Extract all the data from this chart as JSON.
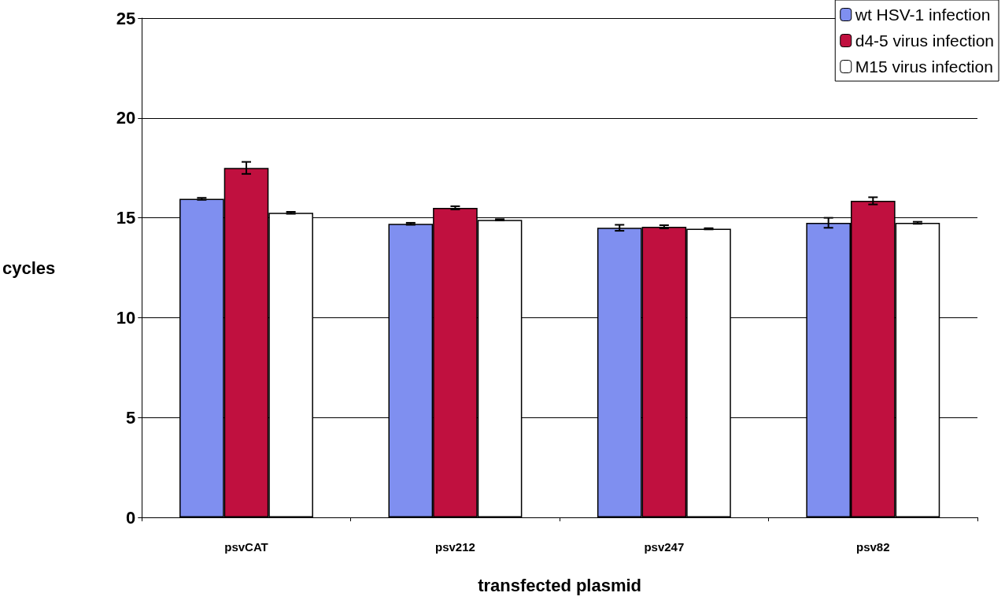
{
  "chart_data": {
    "type": "bar",
    "xlabel": "transfected plasmid",
    "ylabel": "cycles",
    "categories": [
      "psvCAT",
      "psv212",
      "psv247",
      "psv82"
    ],
    "series": [
      {
        "name": "wt HSV-1 infection",
        "color": "#7f8ff0",
        "values": [
          15.95,
          14.7,
          14.5,
          14.75
        ],
        "errors": [
          0.05,
          0.05,
          0.15,
          0.25
        ]
      },
      {
        "name": "d4-5 virus infection",
        "color": "#c0103f",
        "values": [
          17.5,
          15.5,
          14.55,
          15.85
        ],
        "errors": [
          0.3,
          0.08,
          0.08,
          0.18
        ]
      },
      {
        "name": "M15 virus infection",
        "color": "#ffffff",
        "values": [
          15.25,
          14.9,
          14.45,
          14.75
        ],
        "errors": [
          0.05,
          0.03,
          0.03,
          0.05
        ]
      }
    ],
    "ylim": [
      0,
      25
    ],
    "yticks": [
      0,
      5,
      10,
      15,
      20,
      25
    ],
    "grid": "y",
    "legend": "top right"
  }
}
